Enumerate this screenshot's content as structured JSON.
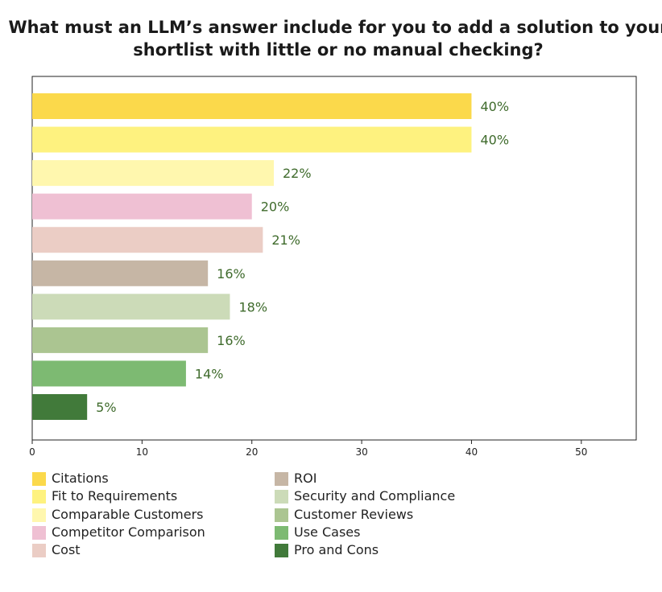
{
  "chart_data": {
    "type": "bar",
    "orientation": "horizontal",
    "title": "What must an LLM’s answer include for you to add a solution to your shortlist with little or no manual checking?",
    "categories": [
      "Citations",
      "Fit to Requirements",
      "Comparable Customers",
      "Competitor Comparison",
      "Cost",
      "ROI",
      "Security and Compliance",
      "Customer Reviews",
      "Use Cases",
      "Pro and Cons"
    ],
    "values": [
      40,
      40,
      22,
      20,
      21,
      16,
      18,
      16,
      14,
      5
    ],
    "data_labels": [
      "40%",
      "40%",
      "22%",
      "20%",
      "21%",
      "16%",
      "18%",
      "16%",
      "14%",
      "5%"
    ],
    "colors": [
      "#FBD94B",
      "#FEF27F",
      "#FFF7AE",
      "#EFC0D3",
      "#EBCDC5",
      "#C6B6A5",
      "#CCDBB8",
      "#ABC591",
      "#7DBA72",
      "#417A3A"
    ],
    "label_color": "#3F6B2C",
    "xlabel": "",
    "ylabel": "",
    "xlim": [
      0,
      55
    ],
    "xticks": [
      0,
      10,
      20,
      30,
      40,
      50
    ],
    "grid": false,
    "legend_position": "bottom"
  }
}
